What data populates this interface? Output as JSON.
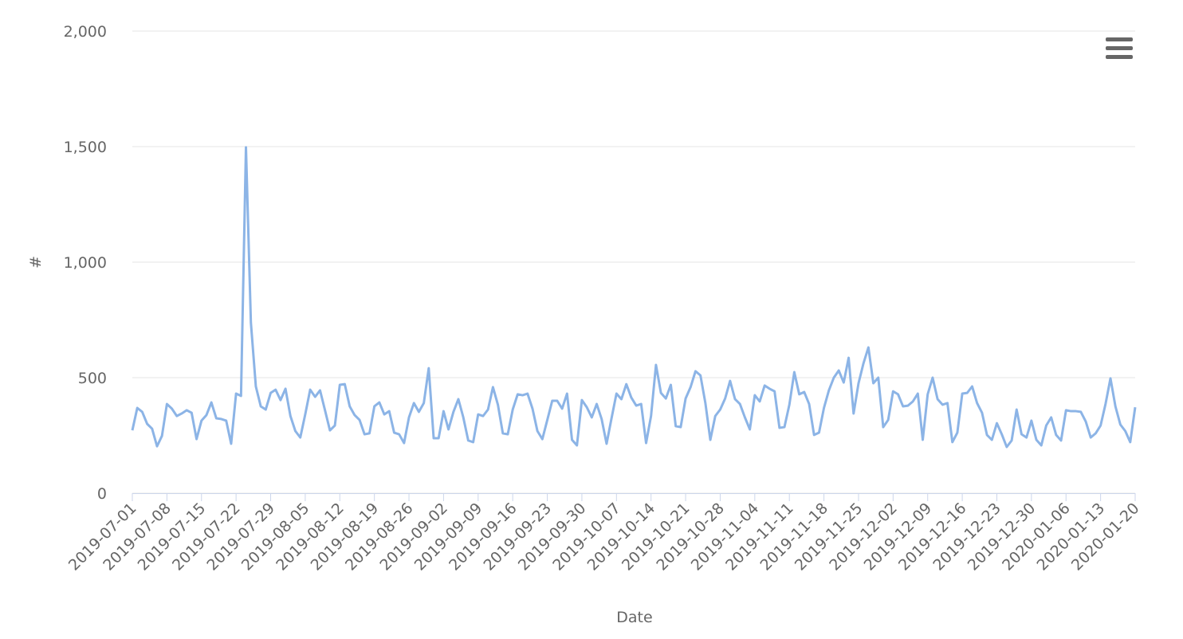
{
  "chart_data": {
    "type": "line",
    "x_label": "Date",
    "y_label": "#",
    "categories": [
      "2019-07-01",
      null,
      null,
      null,
      null,
      null,
      null,
      "2019-07-08",
      null,
      null,
      null,
      null,
      null,
      null,
      "2019-07-15",
      null,
      null,
      null,
      null,
      null,
      null,
      "2019-07-22",
      null,
      null,
      null,
      null,
      null,
      null,
      "2019-07-29",
      null,
      null,
      null,
      null,
      null,
      null,
      "2019-08-05",
      null,
      null,
      null,
      null,
      null,
      null,
      "2019-08-12",
      null,
      null,
      null,
      null,
      null,
      null,
      "2019-08-19",
      null,
      null,
      null,
      null,
      null,
      null,
      "2019-08-26",
      null,
      null,
      null,
      null,
      null,
      null,
      "2019-09-02",
      null,
      null,
      null,
      null,
      null,
      null,
      "2019-09-09",
      null,
      null,
      null,
      null,
      null,
      null,
      "2019-09-16",
      null,
      null,
      null,
      null,
      null,
      null,
      "2019-09-23",
      null,
      null,
      null,
      null,
      null,
      null,
      "2019-09-30",
      null,
      null,
      null,
      null,
      null,
      null,
      "2019-10-07",
      null,
      null,
      null,
      null,
      null,
      null,
      "2019-10-14",
      null,
      null,
      null,
      null,
      null,
      null,
      "2019-10-21",
      null,
      null,
      null,
      null,
      null,
      null,
      "2019-10-28",
      null,
      null,
      null,
      null,
      null,
      null,
      "2019-11-04",
      null,
      null,
      null,
      null,
      null,
      null,
      "2019-11-11",
      null,
      null,
      null,
      null,
      null,
      null,
      "2019-11-18",
      null,
      null,
      null,
      null,
      null,
      null,
      "2019-11-25",
      null,
      null,
      null,
      null,
      null,
      null,
      "2019-12-02",
      null,
      null,
      null,
      null,
      null,
      null,
      "2019-12-09",
      null,
      null,
      null,
      null,
      null,
      null,
      "2019-12-16",
      null,
      null,
      null,
      null,
      null,
      null,
      "2019-12-23",
      null,
      null,
      null,
      null,
      null,
      null,
      "2019-12-30",
      null,
      null,
      null,
      null,
      null,
      null,
      "2020-01-06",
      null,
      null,
      null,
      null,
      null,
      null,
      "2020-01-13",
      null,
      null,
      null,
      null,
      null,
      null,
      "2020-01-20"
    ],
    "values": [
      272,
      369,
      352,
      300,
      279,
      203,
      248,
      386,
      366,
      334,
      345,
      359,
      348,
      234,
      314,
      338,
      393,
      324,
      321,
      314,
      214,
      431,
      421,
      1497,
      738,
      462,
      376,
      362,
      434,
      448,
      403,
      452,
      334,
      269,
      241,
      341,
      448,
      417,
      445,
      359,
      272,
      293,
      469,
      472,
      376,
      338,
      317,
      255,
      259,
      376,
      393,
      341,
      355,
      262,
      255,
      217,
      328,
      390,
      352,
      390,
      541,
      238,
      238,
      355,
      276,
      352,
      407,
      328,
      228,
      221,
      341,
      334,
      362,
      459,
      383,
      259,
      255,
      362,
      428,
      424,
      431,
      366,
      269,
      234,
      317,
      400,
      400,
      366,
      431,
      231,
      207,
      403,
      372,
      328,
      386,
      321,
      214,
      324,
      431,
      407,
      472,
      414,
      379,
      386,
      217,
      334,
      555,
      434,
      410,
      469,
      290,
      286,
      410,
      459,
      528,
      510,
      390,
      231,
      334,
      362,
      410,
      486,
      407,
      386,
      328,
      276,
      424,
      397,
      466,
      452,
      441,
      283,
      286,
      383,
      524,
      428,
      438,
      386,
      252,
      262,
      369,
      445,
      500,
      531,
      479,
      586,
      345,
      476,
      562,
      631,
      476,
      500,
      286,
      317,
      441,
      428,
      376,
      379,
      397,
      431,
      231,
      428,
      500,
      407,
      383,
      390,
      221,
      262,
      431,
      434,
      462,
      390,
      348,
      252,
      231,
      303,
      255,
      200,
      228,
      362,
      255,
      241,
      314,
      231,
      207,
      293,
      328,
      252,
      228,
      359,
      355,
      355,
      352,
      310,
      241,
      259,
      293,
      386,
      497,
      376,
      297,
      269,
      221,
      372
    ],
    "color": "#8cb4e6",
    "ylim": [
      0,
      2000
    ],
    "yticks": [
      0,
      500,
      {
        "value": 1000,
        "label": "1,000"
      },
      {
        "value": 1500,
        "label": "1,500"
      },
      {
        "value": 2000,
        "label": "2,000"
      }
    ],
    "grid": true
  }
}
